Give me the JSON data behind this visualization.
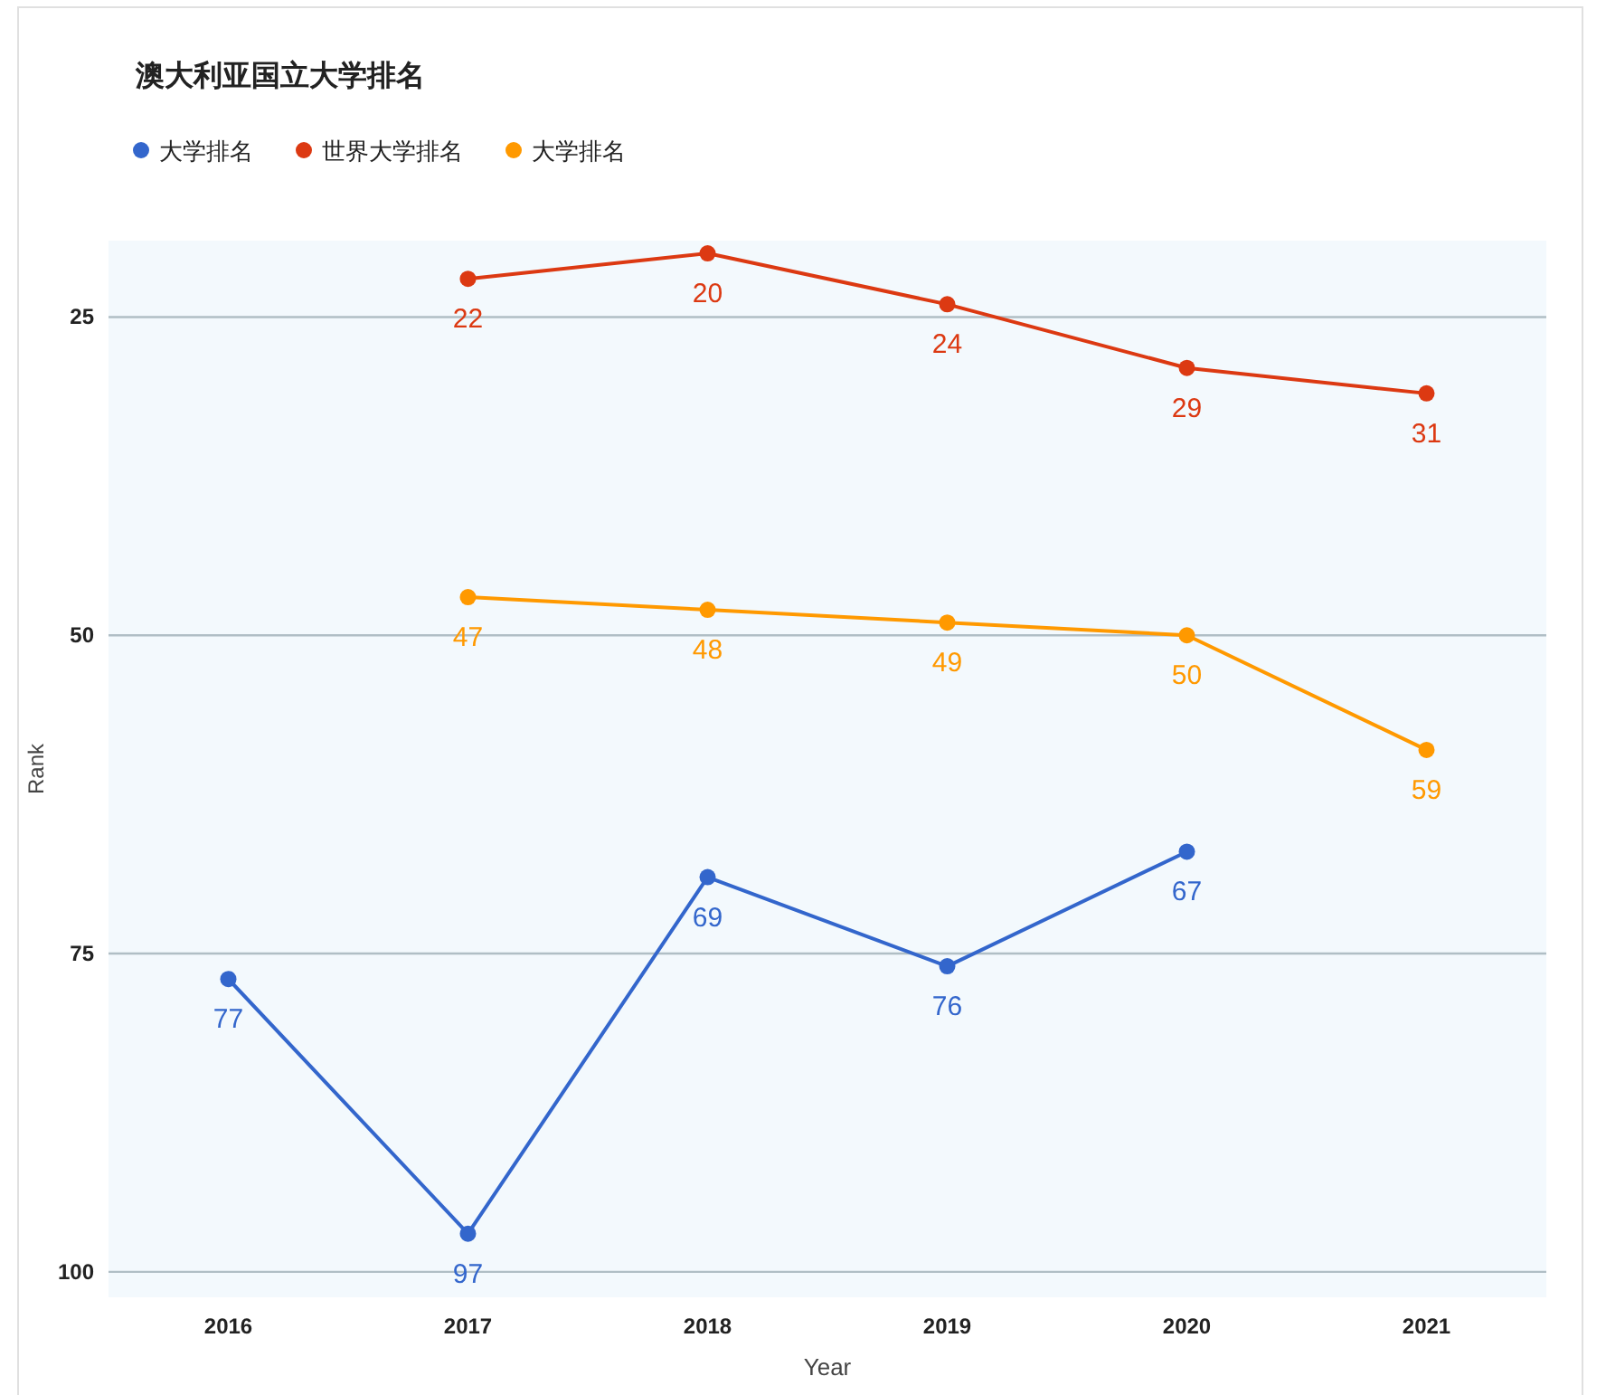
{
  "chart_data": {
    "type": "line",
    "title": "澳大利亚国立大学排名",
    "xlabel": "Year",
    "ylabel": "Rank",
    "categories": [
      "2016",
      "2017",
      "2018",
      "2019",
      "2020",
      "2021"
    ],
    "series": [
      {
        "name": "大学排名",
        "color": "#3366cc",
        "values": [
          77,
          97,
          69,
          76,
          67,
          null
        ]
      },
      {
        "name": "世界大学排名",
        "color": "#dc3912",
        "values": [
          null,
          22,
          20,
          24,
          29,
          31
        ]
      },
      {
        "name": "大学排名",
        "color": "#ff9900",
        "values": [
          null,
          47,
          48,
          49,
          50,
          59
        ]
      }
    ],
    "ylim": [
      102,
      19
    ],
    "yticks": [
      25,
      50,
      75,
      100
    ],
    "grid": "y",
    "legend": "top",
    "marker": "circle",
    "line_style": "solid",
    "data_labels": true
  }
}
